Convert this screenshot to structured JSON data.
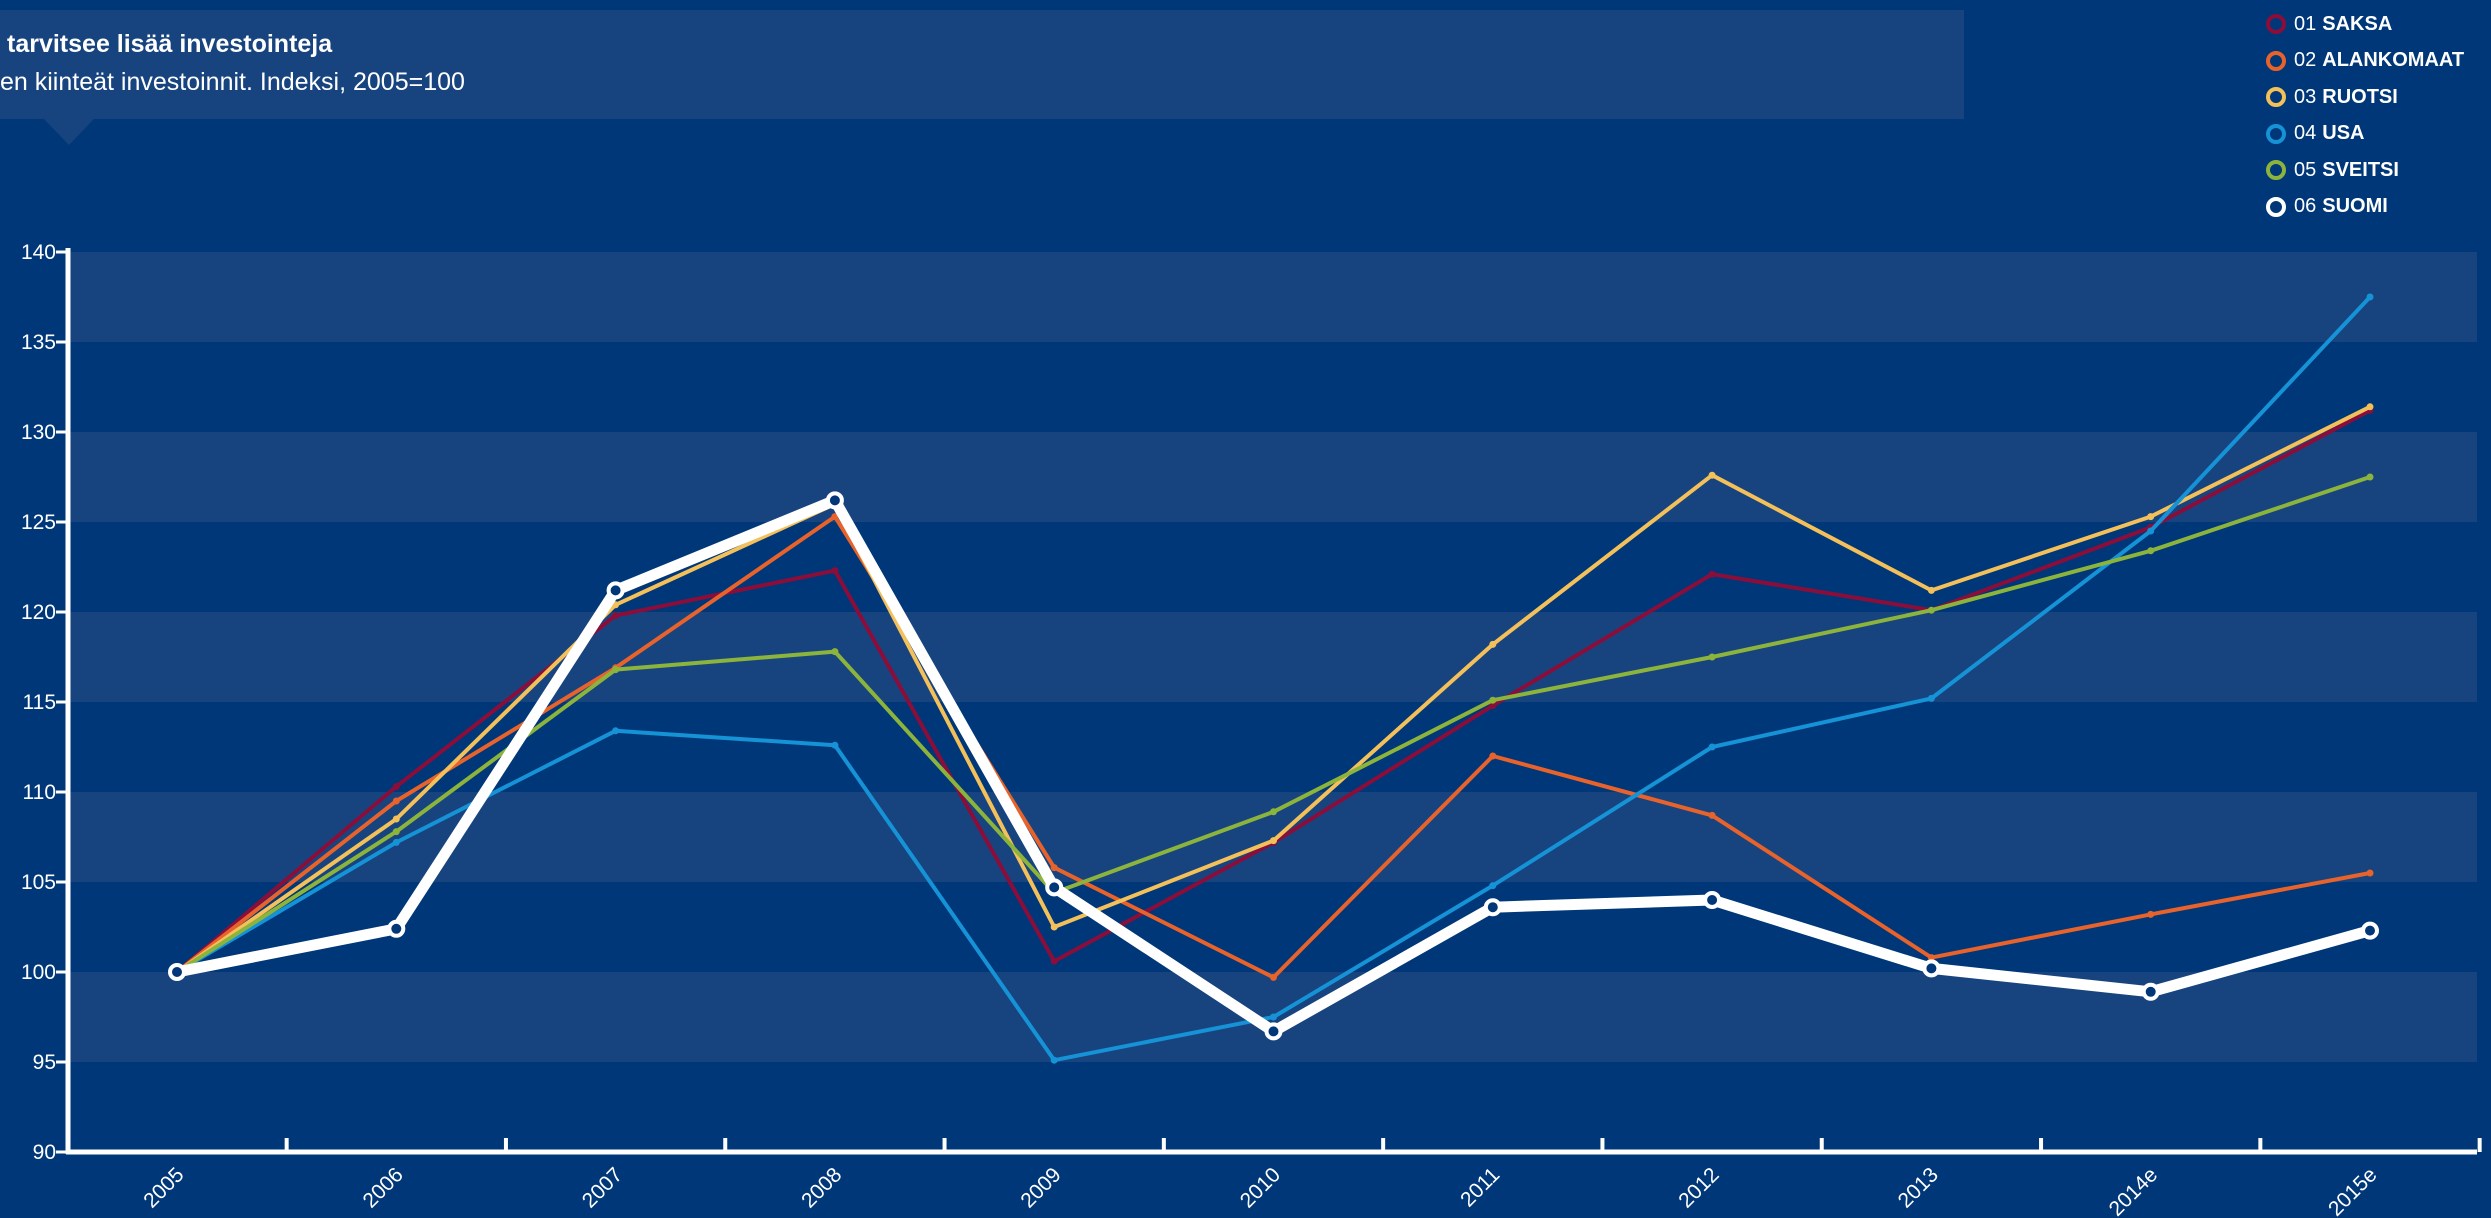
{
  "chart_data": {
    "type": "line",
    "title": "tarvitsee lisää investointeja",
    "subtitle": "en kiinteät investoinnit. Indeksi, 2005=100",
    "x": [
      "2005",
      "2006",
      "2007",
      "2008",
      "2009",
      "2010",
      "2011",
      "2012",
      "2013",
      "2014e",
      "2015e"
    ],
    "ylim": [
      90,
      140
    ],
    "yticks": [
      90,
      95,
      100,
      105,
      110,
      115,
      120,
      125,
      130,
      135,
      140
    ],
    "grid": "alternating horizontal bands",
    "legend_position": "top-right",
    "series": [
      {
        "num": "01",
        "name": "SAKSA",
        "color": "#8b0e3a",
        "width": 4,
        "values": [
          100,
          110.3,
          119.8,
          122.3,
          100.6,
          107.2,
          114.8,
          122.1,
          120.1,
          124.7,
          131.2
        ]
      },
      {
        "num": "02",
        "name": "ALANKOMAAT",
        "color": "#e8632b",
        "width": 4,
        "values": [
          100,
          109.5,
          116.9,
          125.3,
          105.8,
          99.7,
          112.0,
          108.7,
          100.8,
          103.2,
          105.5
        ]
      },
      {
        "num": "03",
        "name": "RUOTSI",
        "color": "#f4c05a",
        "width": 4,
        "values": [
          100,
          108.5,
          120.4,
          126.0,
          102.5,
          107.3,
          118.2,
          127.6,
          121.2,
          125.3,
          131.4
        ]
      },
      {
        "num": "04",
        "name": "USA",
        "color": "#1593d6",
        "width": 4,
        "values": [
          100,
          107.2,
          113.4,
          112.6,
          95.1,
          97.5,
          104.8,
          112.5,
          115.2,
          124.5,
          137.5
        ]
      },
      {
        "num": "05",
        "name": "SVEITSI",
        "color": "#8cb43c",
        "width": 4,
        "values": [
          100,
          107.8,
          116.8,
          117.8,
          104.4,
          108.9,
          115.1,
          117.5,
          120.1,
          123.4,
          127.5
        ]
      },
      {
        "num": "06",
        "name": "SUOMI",
        "color": "#ffffff",
        "width": 11,
        "values": [
          100,
          102.4,
          121.2,
          126.2,
          104.7,
          96.7,
          103.6,
          104.0,
          100.2,
          98.9,
          102.3
        ]
      }
    ]
  }
}
